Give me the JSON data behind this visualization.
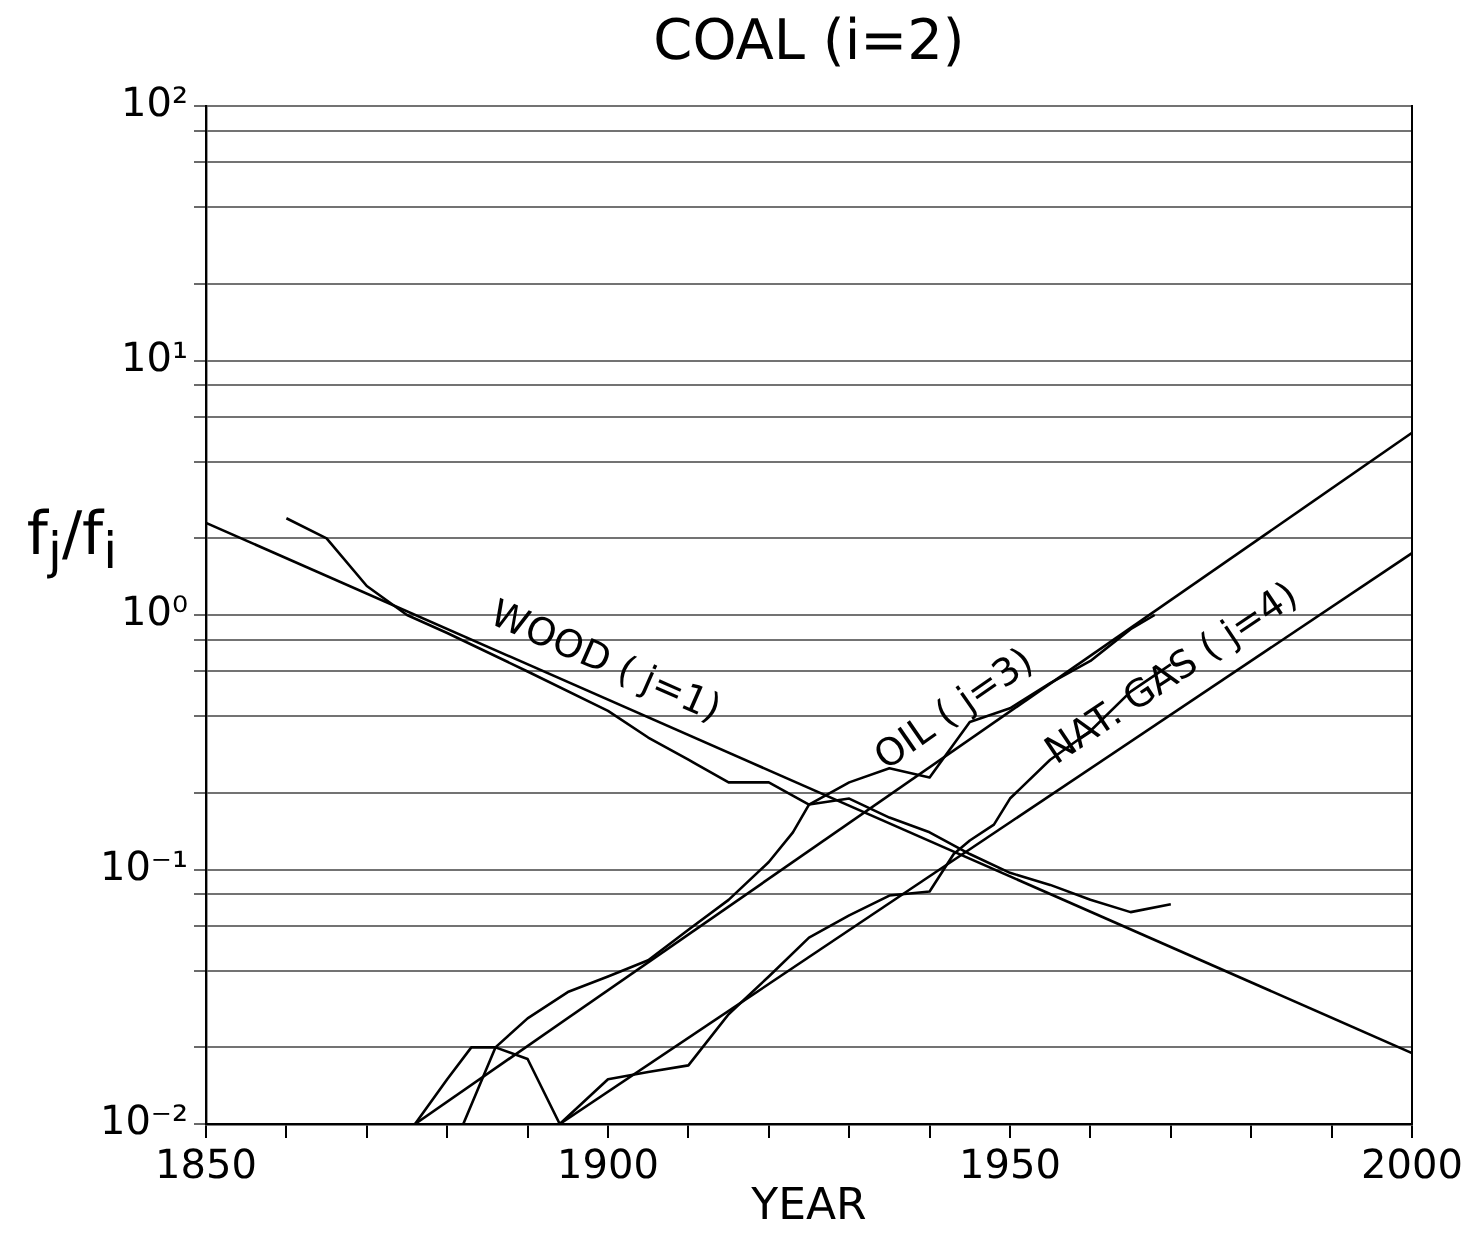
{
  "chart_data": {
    "type": "line",
    "title": "COAL (i=2)",
    "xlabel": "YEAR",
    "ylabel": "f$_{j}$/f$_{i}$",
    "log": "y",
    "grid": "y",
    "line_style": "solid",
    "marker": "none",
    "xlim": [
      1850,
      2000
    ],
    "xticks": [
      1850,
      {
        "value": 1860,
        "label": null
      },
      {
        "value": 1870,
        "label": null
      },
      {
        "value": 1880,
        "label": null
      },
      {
        "value": 1890,
        "label": null
      },
      1900,
      {
        "value": 1910,
        "label": null
      },
      {
        "value": 1920,
        "label": null
      },
      {
        "value": 1930,
        "label": null
      },
      {
        "value": 1940,
        "label": null
      },
      1950,
      {
        "value": 1960,
        "label": null
      },
      {
        "value": 1970,
        "label": null
      },
      {
        "value": 1980,
        "label": null
      },
      {
        "value": 1990,
        "label": null
      },
      2000
    ],
    "ylim": [
      0.01,
      100
    ],
    "yticks": [
      {
        "value": 0.01,
        "label": "10⁻²"
      },
      {
        "value": 0.02,
        "label": null
      },
      {
        "value": 0.04,
        "label": null
      },
      {
        "value": 0.06,
        "label": null
      },
      {
        "value": 0.08,
        "label": null
      },
      {
        "value": 0.1,
        "label": "10⁻¹"
      },
      {
        "value": 0.2,
        "label": null
      },
      {
        "value": 0.4,
        "label": null
      },
      {
        "value": 0.6,
        "label": null
      },
      {
        "value": 0.8,
        "label": null
      },
      {
        "value": 1,
        "label": "10⁰"
      },
      {
        "value": 2,
        "label": null
      },
      {
        "value": 4,
        "label": null
      },
      {
        "value": 6,
        "label": null
      },
      {
        "value": 8,
        "label": null
      },
      {
        "value": 10,
        "label": "10¹"
      },
      {
        "value": 20,
        "label": null
      },
      {
        "value": 40,
        "label": null
      },
      {
        "value": 60,
        "label": null
      },
      {
        "value": 80,
        "label": null
      },
      {
        "value": 100,
        "label": "10²"
      }
    ],
    "series": [
      {
        "name": "WOOD ( j=1)",
        "color": "#000000",
        "x": [
          1850,
          2000
        ],
        "values": [
          2.3,
          0.019
        ]
      },
      {
        "name": "OIL ( j=3)",
        "color": "#000000",
        "x": [
          1876,
          2000
        ],
        "values": [
          0.01,
          5.2
        ]
      },
      {
        "name": "NAT. GAS ( j=4)",
        "color": "#000000",
        "x": [
          1894,
          2000
        ],
        "values": [
          0.01,
          1.75
        ]
      },
      {
        "color": "#000000",
        "x": [
          1860,
          1865,
          1870,
          1875,
          1880,
          1890,
          1900,
          1905,
          1910,
          1915,
          1920,
          1925,
          1930,
          1935,
          1940,
          1945,
          1950,
          1955,
          1960,
          1965,
          1970
        ],
        "values": [
          2.4,
          2.0,
          1.3,
          1.0,
          0.85,
          0.6,
          0.42,
          0.33,
          0.27,
          0.22,
          0.22,
          0.18,
          0.19,
          0.16,
          0.14,
          0.115,
          0.097,
          0.087,
          0.076,
          0.068,
          0.073
        ]
      },
      {
        "color": "#000000",
        "x": [
          1876,
          1880,
          1883,
          1886,
          1890,
          1895,
          1900,
          1905,
          1910,
          1915,
          1920,
          1923,
          1925,
          1930,
          1935,
          1940,
          1945,
          1950,
          1955,
          1960,
          1965,
          1968
        ],
        "values": [
          0.01,
          0.015,
          0.02,
          0.02,
          0.026,
          0.033,
          0.038,
          0.044,
          0.058,
          0.076,
          0.107,
          0.14,
          0.18,
          0.22,
          0.25,
          0.23,
          0.38,
          0.43,
          0.54,
          0.66,
          0.88,
          1.0
        ]
      },
      {
        "color": "#000000",
        "x": [
          1882,
          1886,
          1890,
          1894,
          1900,
          1905,
          1910,
          1915,
          1920,
          1925,
          1930,
          1935,
          1940,
          1943,
          1945,
          1948,
          1950,
          1955,
          1960,
          1965,
          1970
        ],
        "values": [
          0.01,
          0.02,
          0.018,
          0.01,
          0.015,
          0.016,
          0.017,
          0.027,
          0.038,
          0.054,
          0.066,
          0.079,
          0.082,
          0.115,
          0.13,
          0.15,
          0.19,
          0.27,
          0.35,
          0.5,
          0.64
        ]
      }
    ]
  }
}
